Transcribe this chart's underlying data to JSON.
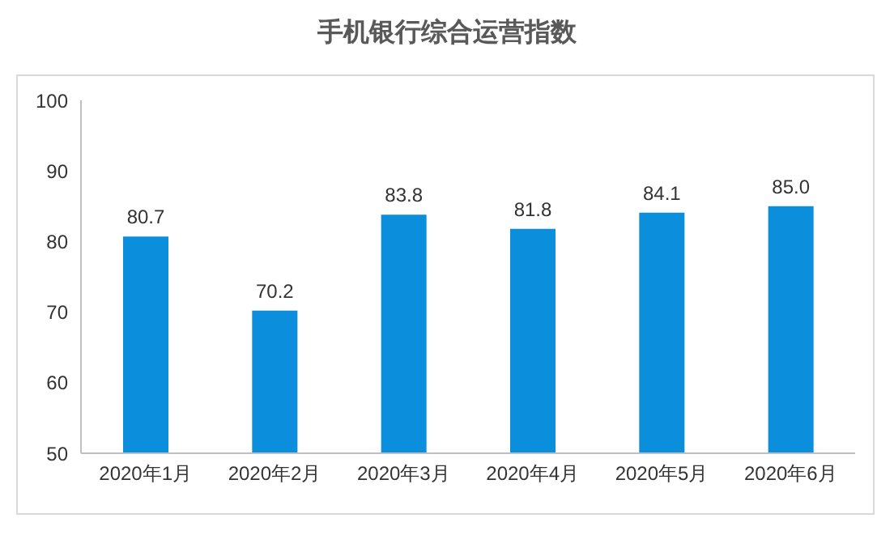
{
  "chart_data": {
    "type": "bar",
    "title": "手机银行综合运营指数",
    "categories": [
      "2020年1月",
      "2020年2月",
      "2020年3月",
      "2020年4月",
      "2020年5月",
      "2020年6月"
    ],
    "values": [
      80.7,
      70.2,
      83.8,
      81.8,
      84.1,
      85.0
    ],
    "value_labels": [
      "80.7",
      "70.2",
      "83.8",
      "81.8",
      "84.1",
      "85.0"
    ],
    "color": "#0b8fdc",
    "ylim": [
      50,
      100
    ],
    "yticks": [
      50,
      60,
      70,
      80,
      90,
      100
    ],
    "grid": false,
    "legend": false
  }
}
